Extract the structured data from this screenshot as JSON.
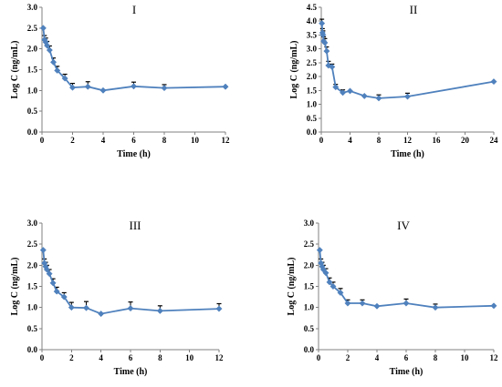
{
  "chart_data": [
    {
      "type": "line",
      "title": "I",
      "xlabel": "Time (h)",
      "ylabel": "Log C (ng/mL)",
      "xlim": [
        0,
        12
      ],
      "ylim": [
        0,
        3.0
      ],
      "xticks": [
        "0",
        "2",
        "4",
        "6",
        "8",
        "10",
        "12"
      ],
      "yticks": [
        "0.0",
        "0.5",
        "1.0",
        "1.5",
        "2.0",
        "2.5",
        "3.0"
      ],
      "line_color": "#4f81bd",
      "marker": "diamond",
      "grid": false,
      "series": [
        {
          "x": [
            0.083,
            0.167,
            0.25,
            0.333,
            0.5,
            0.75,
            1,
            1.5,
            2,
            3,
            4,
            6,
            8,
            12
          ],
          "y": [
            2.5,
            2.22,
            2.16,
            2.08,
            1.97,
            1.68,
            1.48,
            1.29,
            1.07,
            1.09,
            1.0,
            1.1,
            1.06,
            1.09
          ],
          "error": [
            0,
            0.1,
            0.1,
            0.1,
            0.1,
            0.1,
            0.1,
            0.1,
            0.1,
            0.12,
            0,
            0.1,
            0.08,
            0
          ]
        }
      ]
    },
    {
      "type": "line",
      "title": "II",
      "xlabel": "Time (h)",
      "ylabel": "Log C (ng/mL)",
      "xlim": [
        0,
        24
      ],
      "ylim": [
        0,
        4.5
      ],
      "xticks": [
        "0",
        "4",
        "8",
        "12",
        "16",
        "20",
        "24"
      ],
      "yticks": [
        "0.0",
        "0.5",
        "1.0",
        "1.5",
        "2.0",
        "2.5",
        "3.0",
        "3.5",
        "4.0",
        "4.5"
      ],
      "line_color": "#4f81bd",
      "marker": "diamond",
      "grid": false,
      "series": [
        {
          "x": [
            0.083,
            0.167,
            0.25,
            0.333,
            0.5,
            0.75,
            1,
            1.5,
            2,
            3,
            4,
            6,
            8,
            12,
            24
          ],
          "y": [
            3.92,
            3.58,
            3.5,
            3.28,
            3.22,
            2.92,
            2.4,
            2.35,
            1.62,
            1.42,
            1.48,
            1.3,
            1.22,
            1.28,
            1.82
          ],
          "error": [
            0.15,
            0.15,
            0.15,
            0.15,
            0.15,
            0.15,
            0.15,
            0.1,
            0.1,
            0.1,
            0,
            0,
            0.12,
            0.12,
            0
          ]
        }
      ]
    },
    {
      "type": "line",
      "title": "III",
      "xlabel": "Time (h)",
      "ylabel": "Log C (ng/mL)",
      "xlim": [
        0,
        12
      ],
      "ylim": [
        0,
        3.0
      ],
      "xticks": [
        "0",
        "2",
        "4",
        "6",
        "8",
        "10",
        "12"
      ],
      "yticks": [
        "0.0",
        "0.5",
        "1.0",
        "1.5",
        "2.0",
        "2.5",
        "3.0"
      ],
      "line_color": "#4f81bd",
      "marker": "diamond",
      "grid": false,
      "series": [
        {
          "x": [
            0.083,
            0.167,
            0.25,
            0.333,
            0.5,
            0.75,
            1,
            1.5,
            2,
            3,
            4,
            6,
            8,
            12
          ],
          "y": [
            2.36,
            2.05,
            1.97,
            1.9,
            1.8,
            1.58,
            1.38,
            1.25,
            1.0,
            0.99,
            0.85,
            0.98,
            0.92,
            0.97
          ],
          "error": [
            0,
            0.1,
            0.1,
            0.1,
            0.1,
            0.1,
            0.1,
            0.1,
            0.12,
            0.15,
            0,
            0.15,
            0.12,
            0.12
          ]
        }
      ]
    },
    {
      "type": "line",
      "title": "IV",
      "xlabel": "Time (h)",
      "ylabel": "Log C (ng/mL)",
      "xlim": [
        0,
        12
      ],
      "ylim": [
        0,
        3.0
      ],
      "xticks": [
        "0",
        "2",
        "4",
        "6",
        "8",
        "10",
        "12"
      ],
      "yticks": [
        "0.0",
        "0.5",
        "1.0",
        "1.5",
        "2.0",
        "2.5",
        "3.0"
      ],
      "line_color": "#4f81bd",
      "marker": "diamond",
      "grid": false,
      "series": [
        {
          "x": [
            0.083,
            0.167,
            0.25,
            0.333,
            0.5,
            0.75,
            1,
            1.5,
            2,
            3,
            4,
            6,
            8,
            12
          ],
          "y": [
            2.36,
            2.05,
            1.97,
            1.9,
            1.82,
            1.6,
            1.5,
            1.35,
            1.1,
            1.1,
            1.03,
            1.1,
            1.0,
            1.04
          ],
          "error": [
            0,
            0.1,
            0.1,
            0.1,
            0.1,
            0.1,
            0.1,
            0.1,
            0.08,
            0.08,
            0,
            0.1,
            0.08,
            0
          ]
        }
      ]
    }
  ]
}
